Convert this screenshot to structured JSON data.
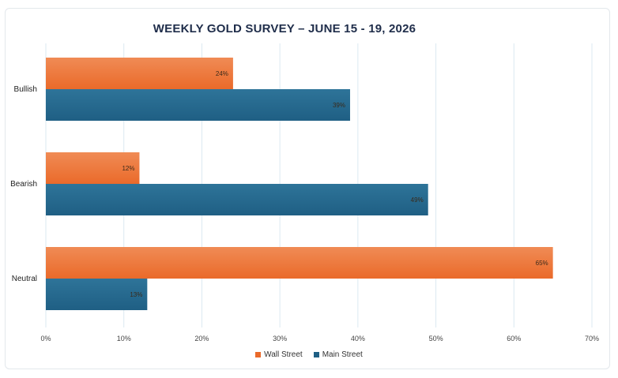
{
  "chart_data": {
    "type": "bar",
    "orientation": "horizontal",
    "title": "WEEKLY GOLD SURVEY – JUNE 15 - 19, 2026",
    "categories": [
      "Bullish",
      "Bearish",
      "Neutral"
    ],
    "series": [
      {
        "name": "Wall Street",
        "values": [
          24,
          12,
          65
        ],
        "labels": [
          "24%",
          "12%",
          "65%"
        ],
        "color": "#ea6a2a"
      },
      {
        "name": "Main Street",
        "values": [
          39,
          49,
          13
        ],
        "labels": [
          "39%",
          "49%",
          "13%"
        ],
        "color": "#1f5f84"
      }
    ],
    "xlim": [
      0,
      70
    ],
    "xticks": [
      "0%",
      "10%",
      "20%",
      "30%",
      "40%",
      "50%",
      "60%",
      "70%"
    ],
    "grid": true,
    "legend": "bottom"
  },
  "colors": {
    "grid": "#dbe9f1",
    "title": "#1f2d4a",
    "label": "#3a2a1a"
  }
}
